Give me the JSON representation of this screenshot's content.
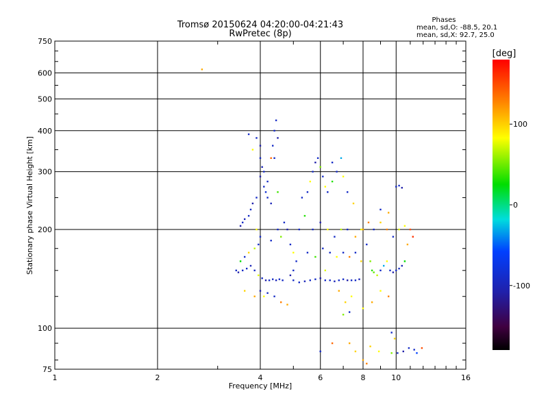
{
  "chart_data": {
    "type": "scatter",
    "title": "Tromsø 20150624 04:20:00-04:21:43",
    "subtitle": "RwPretec (8p)",
    "stats": {
      "heading": "Phases",
      "line_o": "mean, sd,O: -88.5, 20.1",
      "line_x": "mean, sd,X:  92.7, 25.0"
    },
    "xlabel": "Frequency [MHz]",
    "ylabel": "Stationary phase Virtual Height [km]",
    "x_scale": "log",
    "y_scale": "log",
    "xlim": [
      1,
      16
    ],
    "ylim": [
      75,
      750
    ],
    "x_ticks": [
      1,
      2,
      4,
      6,
      8,
      10,
      16
    ],
    "x_tick_labels": [
      "1",
      "2",
      "4",
      "6",
      "8",
      "10",
      "16"
    ],
    "y_ticks": [
      75,
      100,
      200,
      300,
      400,
      500,
      600,
      750
    ],
    "y_tick_labels": [
      "75",
      "100",
      "200",
      "300",
      "400",
      "500",
      "600",
      "750"
    ],
    "grid": true,
    "colorbar": {
      "label": "[deg]",
      "range": [
        -180,
        180
      ],
      "ticks": [
        100,
        0,
        -100
      ],
      "tick_labels": [
        "100",
        "0",
        "-100"
      ]
    },
    "points": [
      {
        "x": 2.7,
        "y": 615,
        "phase": 120
      },
      {
        "x": 3.7,
        "y": 390,
        "phase": -100
      },
      {
        "x": 3.8,
        "y": 350,
        "phase": 100
      },
      {
        "x": 3.9,
        "y": 380,
        "phase": -100
      },
      {
        "x": 4.0,
        "y": 360,
        "phase": -110
      },
      {
        "x": 4.0,
        "y": 330,
        "phase": -100
      },
      {
        "x": 4.05,
        "y": 310,
        "phase": -105
      },
      {
        "x": 4.1,
        "y": 300,
        "phase": -100
      },
      {
        "x": 4.0,
        "y": 290,
        "phase": -110
      },
      {
        "x": 4.1,
        "y": 270,
        "phase": -100
      },
      {
        "x": 4.15,
        "y": 260,
        "phase": -95
      },
      {
        "x": 3.9,
        "y": 250,
        "phase": -100
      },
      {
        "x": 3.8,
        "y": 240,
        "phase": -110
      },
      {
        "x": 3.75,
        "y": 230,
        "phase": -100
      },
      {
        "x": 3.7,
        "y": 220,
        "phase": -100
      },
      {
        "x": 3.6,
        "y": 215,
        "phase": -105
      },
      {
        "x": 3.55,
        "y": 210,
        "phase": -100
      },
      {
        "x": 3.5,
        "y": 205,
        "phase": -110
      },
      {
        "x": 4.2,
        "y": 280,
        "phase": -100
      },
      {
        "x": 4.3,
        "y": 240,
        "phase": -105
      },
      {
        "x": 4.4,
        "y": 400,
        "phase": -100
      },
      {
        "x": 4.45,
        "y": 430,
        "phase": -100
      },
      {
        "x": 4.5,
        "y": 380,
        "phase": -110
      },
      {
        "x": 4.35,
        "y": 360,
        "phase": -100
      },
      {
        "x": 4.3,
        "y": 330,
        "phase": 140
      },
      {
        "x": 4.4,
        "y": 330,
        "phase": -100
      },
      {
        "x": 4.2,
        "y": 250,
        "phase": -100
      },
      {
        "x": 4.5,
        "y": 260,
        "phase": 40
      },
      {
        "x": 3.9,
        "y": 200,
        "phase": 100
      },
      {
        "x": 4.0,
        "y": 190,
        "phase": -100
      },
      {
        "x": 3.95,
        "y": 180,
        "phase": -100
      },
      {
        "x": 3.85,
        "y": 175,
        "phase": 80
      },
      {
        "x": 3.7,
        "y": 170,
        "phase": 110
      },
      {
        "x": 3.6,
        "y": 165,
        "phase": -100
      },
      {
        "x": 3.5,
        "y": 160,
        "phase": 20
      },
      {
        "x": 3.4,
        "y": 150,
        "phase": -100
      },
      {
        "x": 3.45,
        "y": 148,
        "phase": -110
      },
      {
        "x": 3.55,
        "y": 150,
        "phase": -100
      },
      {
        "x": 3.65,
        "y": 152,
        "phase": -100
      },
      {
        "x": 3.75,
        "y": 155,
        "phase": -105
      },
      {
        "x": 3.85,
        "y": 150,
        "phase": -100
      },
      {
        "x": 3.95,
        "y": 145,
        "phase": 90
      },
      {
        "x": 4.05,
        "y": 142,
        "phase": -100
      },
      {
        "x": 4.15,
        "y": 140,
        "phase": -110
      },
      {
        "x": 4.25,
        "y": 140,
        "phase": -100
      },
      {
        "x": 4.35,
        "y": 141,
        "phase": -100
      },
      {
        "x": 4.45,
        "y": 140,
        "phase": -105
      },
      {
        "x": 4.55,
        "y": 141,
        "phase": -100
      },
      {
        "x": 4.65,
        "y": 140,
        "phase": -100
      },
      {
        "x": 4.0,
        "y": 130,
        "phase": -110
      },
      {
        "x": 4.1,
        "y": 125,
        "phase": 100
      },
      {
        "x": 4.2,
        "y": 128,
        "phase": -100
      },
      {
        "x": 3.85,
        "y": 125,
        "phase": 120
      },
      {
        "x": 3.6,
        "y": 130,
        "phase": 110
      },
      {
        "x": 4.4,
        "y": 125,
        "phase": -100
      },
      {
        "x": 4.6,
        "y": 120,
        "phase": 130
      },
      {
        "x": 4.8,
        "y": 118,
        "phase": 120
      },
      {
        "x": 4.3,
        "y": 185,
        "phase": -100
      },
      {
        "x": 4.5,
        "y": 200,
        "phase": -100
      },
      {
        "x": 4.6,
        "y": 190,
        "phase": 60
      },
      {
        "x": 4.7,
        "y": 210,
        "phase": -100
      },
      {
        "x": 4.8,
        "y": 200,
        "phase": -110
      },
      {
        "x": 4.9,
        "y": 180,
        "phase": -100
      },
      {
        "x": 5.0,
        "y": 170,
        "phase": 100
      },
      {
        "x": 5.1,
        "y": 160,
        "phase": -100
      },
      {
        "x": 5.0,
        "y": 150,
        "phase": -100
      },
      {
        "x": 4.9,
        "y": 145,
        "phase": -110
      },
      {
        "x": 5.0,
        "y": 140,
        "phase": -100
      },
      {
        "x": 5.2,
        "y": 138,
        "phase": -100
      },
      {
        "x": 5.4,
        "y": 139,
        "phase": -105
      },
      {
        "x": 5.6,
        "y": 140,
        "phase": -100
      },
      {
        "x": 5.8,
        "y": 141,
        "phase": -100
      },
      {
        "x": 6.0,
        "y": 142,
        "phase": -110
      },
      {
        "x": 6.2,
        "y": 140,
        "phase": -100
      },
      {
        "x": 6.4,
        "y": 140,
        "phase": -100
      },
      {
        "x": 6.6,
        "y": 139,
        "phase": -105
      },
      {
        "x": 6.8,
        "y": 140,
        "phase": -100
      },
      {
        "x": 7.0,
        "y": 141,
        "phase": -100
      },
      {
        "x": 7.2,
        "y": 140,
        "phase": -110
      },
      {
        "x": 7.4,
        "y": 140,
        "phase": -100
      },
      {
        "x": 7.6,
        "y": 140,
        "phase": -100
      },
      {
        "x": 7.8,
        "y": 141,
        "phase": -105
      },
      {
        "x": 5.2,
        "y": 200,
        "phase": -100
      },
      {
        "x": 5.4,
        "y": 220,
        "phase": 30
      },
      {
        "x": 5.5,
        "y": 260,
        "phase": -100
      },
      {
        "x": 5.3,
        "y": 250,
        "phase": -100
      },
      {
        "x": 5.6,
        "y": 280,
        "phase": 100
      },
      {
        "x": 5.7,
        "y": 300,
        "phase": -100
      },
      {
        "x": 5.8,
        "y": 320,
        "phase": -110
      },
      {
        "x": 5.9,
        "y": 330,
        "phase": -100
      },
      {
        "x": 6.0,
        "y": 310,
        "phase": 60
      },
      {
        "x": 6.1,
        "y": 290,
        "phase": -100
      },
      {
        "x": 6.2,
        "y": 270,
        "phase": 100
      },
      {
        "x": 6.3,
        "y": 260,
        "phase": -100
      },
      {
        "x": 6.5,
        "y": 280,
        "phase": 30
      },
      {
        "x": 6.7,
        "y": 300,
        "phase": -100
      },
      {
        "x": 6.9,
        "y": 330,
        "phase": -40
      },
      {
        "x": 7.0,
        "y": 290,
        "phase": 100
      },
      {
        "x": 7.2,
        "y": 260,
        "phase": -100
      },
      {
        "x": 7.5,
        "y": 240,
        "phase": 110
      },
      {
        "x": 6.5,
        "y": 320,
        "phase": -100
      },
      {
        "x": 5.7,
        "y": 200,
        "phase": -100
      },
      {
        "x": 6.0,
        "y": 210,
        "phase": -110
      },
      {
        "x": 6.3,
        "y": 200,
        "phase": 100
      },
      {
        "x": 6.6,
        "y": 190,
        "phase": -100
      },
      {
        "x": 6.9,
        "y": 200,
        "phase": 80
      },
      {
        "x": 7.2,
        "y": 200,
        "phase": -100
      },
      {
        "x": 7.6,
        "y": 190,
        "phase": 120
      },
      {
        "x": 7.9,
        "y": 200,
        "phase": 100
      },
      {
        "x": 5.5,
        "y": 170,
        "phase": -100
      },
      {
        "x": 5.8,
        "y": 165,
        "phase": 40
      },
      {
        "x": 6.1,
        "y": 175,
        "phase": -100
      },
      {
        "x": 6.4,
        "y": 170,
        "phase": -100
      },
      {
        "x": 6.7,
        "y": 165,
        "phase": 100
      },
      {
        "x": 7.0,
        "y": 170,
        "phase": -100
      },
      {
        "x": 7.3,
        "y": 165,
        "phase": 130
      },
      {
        "x": 7.6,
        "y": 170,
        "phase": -100
      },
      {
        "x": 7.9,
        "y": 160,
        "phase": 110
      },
      {
        "x": 6.2,
        "y": 150,
        "phase": 90
      },
      {
        "x": 6.8,
        "y": 130,
        "phase": 120
      },
      {
        "x": 7.1,
        "y": 120,
        "phase": 110
      },
      {
        "x": 7.4,
        "y": 125,
        "phase": 100
      },
      {
        "x": 7.0,
        "y": 110,
        "phase": 60
      },
      {
        "x": 7.3,
        "y": 112,
        "phase": -100
      },
      {
        "x": 8.0,
        "y": 200,
        "phase": 120
      },
      {
        "x": 8.2,
        "y": 180,
        "phase": -100
      },
      {
        "x": 8.4,
        "y": 160,
        "phase": 60
      },
      {
        "x": 8.5,
        "y": 150,
        "phase": 30
      },
      {
        "x": 8.6,
        "y": 148,
        "phase": 50
      },
      {
        "x": 8.8,
        "y": 145,
        "phase": 80
      },
      {
        "x": 9.0,
        "y": 150,
        "phase": -100
      },
      {
        "x": 9.2,
        "y": 155,
        "phase": -40
      },
      {
        "x": 9.4,
        "y": 160,
        "phase": 100
      },
      {
        "x": 9.6,
        "y": 150,
        "phase": -100
      },
      {
        "x": 9.8,
        "y": 148,
        "phase": -110
      },
      {
        "x": 10.0,
        "y": 150,
        "phase": -100
      },
      {
        "x": 10.2,
        "y": 152,
        "phase": -100
      },
      {
        "x": 10.4,
        "y": 155,
        "phase": -105
      },
      {
        "x": 10.6,
        "y": 160,
        "phase": 20
      },
      {
        "x": 8.3,
        "y": 210,
        "phase": 130
      },
      {
        "x": 8.6,
        "y": 200,
        "phase": -100
      },
      {
        "x": 9.0,
        "y": 210,
        "phase": 110
      },
      {
        "x": 9.4,
        "y": 200,
        "phase": 130
      },
      {
        "x": 9.8,
        "y": 190,
        "phase": -100
      },
      {
        "x": 10.2,
        "y": 200,
        "phase": 90
      },
      {
        "x": 10.6,
        "y": 205,
        "phase": 100
      },
      {
        "x": 11.0,
        "y": 200,
        "phase": 150
      },
      {
        "x": 11.2,
        "y": 190,
        "phase": 160
      },
      {
        "x": 10.8,
        "y": 180,
        "phase": 120
      },
      {
        "x": 9.0,
        "y": 230,
        "phase": -100
      },
      {
        "x": 9.5,
        "y": 225,
        "phase": 120
      },
      {
        "x": 10.0,
        "y": 270,
        "phase": -100
      },
      {
        "x": 10.2,
        "y": 272,
        "phase": -100
      },
      {
        "x": 10.4,
        "y": 268,
        "phase": -110
      },
      {
        "x": 9.0,
        "y": 130,
        "phase": 100
      },
      {
        "x": 9.5,
        "y": 125,
        "phase": 130
      },
      {
        "x": 8.5,
        "y": 120,
        "phase": 120
      },
      {
        "x": 8.0,
        "y": 115,
        "phase": 100
      },
      {
        "x": 9.7,
        "y": 97,
        "phase": -100
      },
      {
        "x": 9.9,
        "y": 93,
        "phase": 110
      },
      {
        "x": 6.0,
        "y": 85,
        "phase": -100
      },
      {
        "x": 6.5,
        "y": 90,
        "phase": 140
      },
      {
        "x": 7.3,
        "y": 90,
        "phase": 120
      },
      {
        "x": 7.6,
        "y": 85,
        "phase": 110
      },
      {
        "x": 8.0,
        "y": 80,
        "phase": 120
      },
      {
        "x": 8.2,
        "y": 78,
        "phase": 130
      },
      {
        "x": 8.4,
        "y": 88,
        "phase": 110
      },
      {
        "x": 8.9,
        "y": 85,
        "phase": 100
      },
      {
        "x": 9.7,
        "y": 84,
        "phase": 60
      },
      {
        "x": 10.1,
        "y": 84,
        "phase": -100
      },
      {
        "x": 10.5,
        "y": 85,
        "phase": -110
      },
      {
        "x": 10.9,
        "y": 87,
        "phase": -100
      },
      {
        "x": 11.3,
        "y": 86,
        "phase": -100
      },
      {
        "x": 11.5,
        "y": 84,
        "phase": -80
      },
      {
        "x": 11.9,
        "y": 87,
        "phase": 150
      }
    ]
  }
}
